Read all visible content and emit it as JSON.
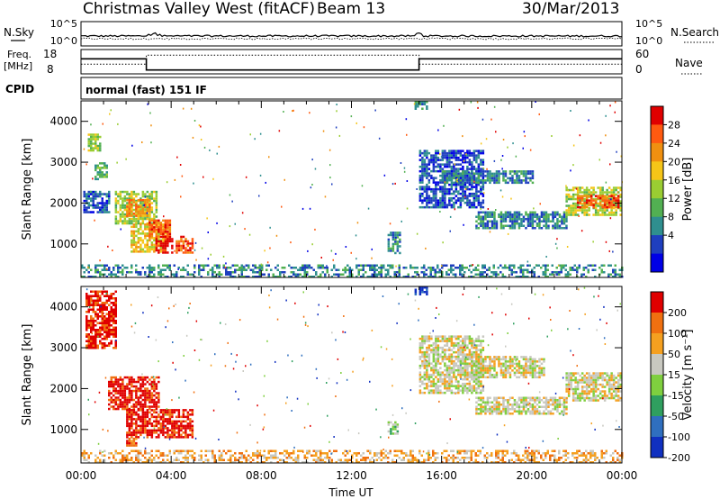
{
  "header": {
    "station": "Christmas Valley West (fitACF)",
    "beam": "Beam 13",
    "date": "30/Mar/2013"
  },
  "summary_panels": {
    "nsky": {
      "label": "N.Sky",
      "ticks_left": [
        "10^5",
        "10^0"
      ]
    },
    "nsearch": {
      "label": "N.Search",
      "ticks_right": [
        "10^5",
        "10^0"
      ]
    },
    "freq": {
      "label_line1": "Freq.",
      "label_line2": "[MHz]",
      "ticks": [
        "18",
        "8"
      ]
    },
    "nave": {
      "label": "Nave",
      "ticks": [
        "60",
        "0"
      ]
    },
    "freq_series": {
      "x": [
        0,
        2.9,
        2.9,
        15.0,
        15.0,
        24
      ],
      "y": [
        14.2,
        14.2,
        9.6,
        9.6,
        14.2,
        14.2
      ]
    },
    "nave_series": {
      "x": [
        0,
        2.9,
        2.9,
        15.0,
        15.0,
        24
      ],
      "y": [
        24,
        24,
        46,
        46,
        24,
        24
      ]
    },
    "cpid": {
      "label": "CPID",
      "text": "normal (fast) 151 IF"
    }
  },
  "chart_data": [
    {
      "type": "heatmap",
      "name": "power",
      "ylabel": "Slant Range [km]",
      "xlim": [
        0,
        24
      ],
      "ylim": [
        180,
        4500
      ],
      "yticks": [
        1000,
        2000,
        3000,
        4000
      ],
      "colorbar": {
        "label": "Power [dB]",
        "ticks": [
          "28",
          "24",
          "20",
          "16",
          "12",
          "8",
          "4"
        ],
        "colors": [
          "#0000e6",
          "#1f3fbf",
          "#2f8f8f",
          "#52b052",
          "#9acd32",
          "#f5c518",
          "#f09010",
          "#ff5a10",
          "#e00000"
        ]
      },
      "regions": [
        {
          "x0": 0.1,
          "x1": 1.2,
          "y0": 1750,
          "y1": 2300,
          "c": 1
        },
        {
          "x0": 0.3,
          "x1": 0.8,
          "y0": 3300,
          "y1": 3700,
          "c": 4
        },
        {
          "x0": 0.6,
          "x1": 1.1,
          "y0": 2600,
          "y1": 3000,
          "c": 3
        },
        {
          "x0": 1.5,
          "x1": 3.3,
          "y0": 1500,
          "y1": 2300,
          "c": 4
        },
        {
          "x0": 2.0,
          "x1": 3.0,
          "y0": 1700,
          "y1": 2100,
          "c": 6
        },
        {
          "x0": 2.2,
          "x1": 3.8,
          "y0": 800,
          "y1": 1500,
          "c": 5
        },
        {
          "x0": 3.0,
          "x1": 3.9,
          "y0": 1200,
          "y1": 1600,
          "c": 7
        },
        {
          "x0": 3.3,
          "x1": 4.0,
          "y0": 800,
          "y1": 1200,
          "c": 8
        },
        {
          "x0": 4.2,
          "x1": 4.9,
          "y0": 800,
          "y1": 1200,
          "c": 7
        },
        {
          "x0": 13.6,
          "x1": 14.1,
          "y0": 800,
          "y1": 1300,
          "c": 2
        },
        {
          "x0": 15.0,
          "x1": 17.8,
          "y0": 1900,
          "y1": 3300,
          "c": 1
        },
        {
          "x0": 16.0,
          "x1": 20.0,
          "y0": 2500,
          "y1": 2800,
          "c": 2
        },
        {
          "x0": 17.5,
          "x1": 21.5,
          "y0": 1400,
          "y1": 1800,
          "c": 2
        },
        {
          "x0": 21.5,
          "x1": 23.9,
          "y0": 1700,
          "y1": 2400,
          "c": 4
        },
        {
          "x0": 22.0,
          "x1": 23.8,
          "y0": 1900,
          "y1": 2200,
          "c": 7
        },
        {
          "x0": 14.8,
          "x1": 15.3,
          "y0": 4300,
          "y1": 4500,
          "c": 2
        },
        {
          "x0": 0,
          "x1": 24,
          "y0": 200,
          "y1": 500,
          "c": 2
        }
      ]
    },
    {
      "type": "heatmap",
      "name": "velocity",
      "ylabel": "Slant Range [km]",
      "xlabel": "Time UT",
      "xlim": [
        0,
        24
      ],
      "ylim": [
        180,
        4500
      ],
      "yticks": [
        1000,
        2000,
        3000,
        4000
      ],
      "xticks": [
        "00:00",
        "04:00",
        "08:00",
        "12:00",
        "16:00",
        "20:00",
        "00:00"
      ],
      "colorbar": {
        "label": "Velocity [m s⁻¹]",
        "ticks": [
          "200",
          "100",
          "50",
          "15",
          "-15",
          "-50",
          "-100",
          "-200"
        ],
        "colors": [
          "#1030c0",
          "#2f6fbf",
          "#2f9f5f",
          "#7fcf3f",
          "#c8c8c0",
          "#f5a020",
          "#f07010",
          "#e00000"
        ]
      },
      "regions": [
        {
          "x0": 0.2,
          "x1": 1.5,
          "y0": 3000,
          "y1": 4400,
          "c": 7
        },
        {
          "x0": 1.2,
          "x1": 3.4,
          "y0": 1500,
          "y1": 2300,
          "c": 7
        },
        {
          "x0": 2.0,
          "x1": 4.9,
          "y0": 800,
          "y1": 1500,
          "c": 7
        },
        {
          "x0": 2.0,
          "x1": 2.4,
          "y0": 600,
          "y1": 800,
          "c": 6
        },
        {
          "x0": 13.6,
          "x1": 14.0,
          "y0": 900,
          "y1": 1200,
          "c": 3
        },
        {
          "x0": 15.0,
          "x1": 17.8,
          "y0": 1900,
          "y1": 3300,
          "c": 4
        },
        {
          "x0": 17.5,
          "x1": 21.5,
          "y0": 1400,
          "y1": 1800,
          "c": 4
        },
        {
          "x0": 21.5,
          "x1": 23.9,
          "y0": 1700,
          "y1": 2400,
          "c": 4
        },
        {
          "x0": 17.0,
          "x1": 20.5,
          "y0": 2300,
          "y1": 2800,
          "c": 4
        },
        {
          "x0": 14.8,
          "x1": 15.3,
          "y0": 4300,
          "y1": 4500,
          "c": 0
        },
        {
          "x0": 0,
          "x1": 24,
          "y0": 200,
          "y1": 500,
          "c": 5
        }
      ]
    }
  ]
}
